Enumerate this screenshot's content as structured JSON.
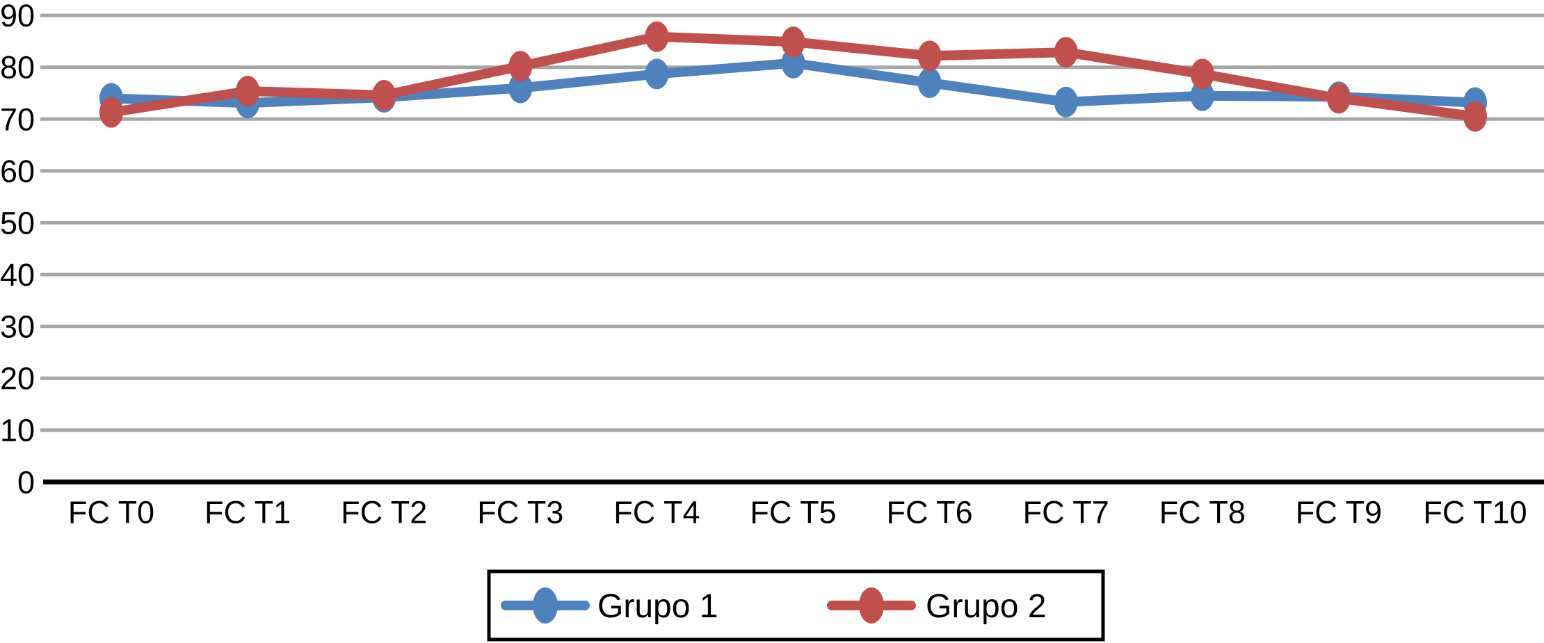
{
  "chart_data": {
    "type": "line",
    "title": "",
    "xlabel": "",
    "ylabel": "",
    "categories": [
      "FC T0",
      "FC T1",
      "FC T2",
      "FC T3",
      "FC T4",
      "FC T5",
      "FC T6",
      "FC T7",
      "FC T8",
      "FC T9",
      "FC T10"
    ],
    "series": [
      {
        "name": "Grupo 1",
        "color": "#4F81BD",
        "values": [
          74.0,
          73.1,
          74.2,
          76.0,
          78.7,
          80.8,
          77.0,
          73.3,
          74.5,
          74.3,
          73.2
        ]
      },
      {
        "name": "Grupo 2",
        "color": "#C0504D",
        "values": [
          71.3,
          75.4,
          74.6,
          80.2,
          85.9,
          84.9,
          82.2,
          82.9,
          78.7,
          74.0,
          70.5
        ]
      }
    ],
    "ylim": [
      0,
      90
    ],
    "yticks": [
      0,
      10,
      20,
      30,
      40,
      50,
      60,
      70,
      80,
      90
    ],
    "grid": "horizontal",
    "gridline_color": "#A6A6A6",
    "axis_color": "#000000",
    "text_color": "#000000",
    "background_color": "#FFFFFF",
    "marker": "ellipse-dot",
    "legend": {
      "position": "bottom-center",
      "border_color": "#000000",
      "background": "#FFFFFF",
      "entries": [
        {
          "label": "Grupo 1",
          "color": "#4F81BD",
          "marker": "line-with-ellipse-dot"
        },
        {
          "label": "Grupo 2",
          "color": "#C0504D",
          "marker": "line-with-ellipse-dot"
        }
      ]
    }
  }
}
